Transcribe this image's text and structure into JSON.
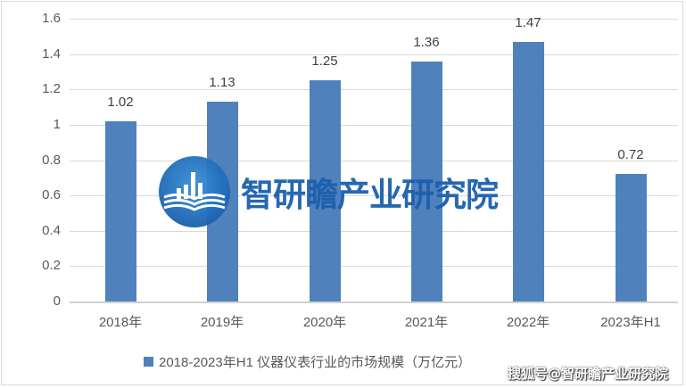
{
  "chart_data": {
    "type": "bar",
    "title": "",
    "categories": [
      "2018年",
      "2019年",
      "2020年",
      "2021年",
      "2022年",
      "2023年H1"
    ],
    "series": [
      {
        "name": "2018-2023年H1 仪器仪表行业的市场规模（万亿元）",
        "values": [
          1.02,
          1.13,
          1.25,
          1.36,
          1.47,
          0.72
        ],
        "color": "#4f81bd"
      }
    ],
    "data_labels": [
      "1.02",
      "1.13",
      "1.25",
      "1.36",
      "1.47",
      "0.72"
    ],
    "xlabel": "",
    "ylabel": "",
    "ylim": [
      0,
      1.6
    ],
    "yticks": [
      "0",
      "0.2",
      "0.4",
      "0.6",
      "0.8",
      "1",
      "1.2",
      "1.4",
      "1.6"
    ],
    "grid": true,
    "legend_position": "bottom"
  },
  "legend": {
    "label": "2018-2023年H1 仪器仪表行业的市场规模（万亿元）"
  },
  "watermark": {
    "text": "智研瞻产业研究院",
    "source": "搜狐号@智研瞻产业研究院"
  },
  "colors": {
    "bar": "#4f81bd",
    "grid": "#d9d9d9",
    "watermark_text": "#1b5fae"
  }
}
